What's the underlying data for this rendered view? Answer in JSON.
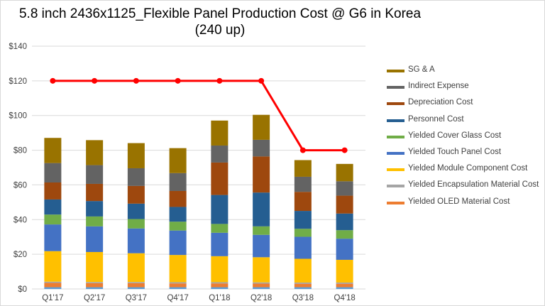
{
  "chart_data": {
    "type": "bar",
    "stacked": true,
    "title": "5.8 inch 2436x1125_Flexible  Panel Production Cost @ G6  in Korea",
    "subtitle": "(240 up)",
    "xlabel": "",
    "ylabel": "",
    "ylim": [
      0,
      140
    ],
    "yticks": [
      "$0",
      "$20",
      "$40",
      "$60",
      "$80",
      "$100",
      "$120",
      "$140"
    ],
    "grid": true,
    "legend_position": "right",
    "categories": [
      "Q1'17",
      "Q2'17",
      "Q3'17",
      "Q4'17",
      "Q1'18",
      "Q2'18",
      "Q3'18",
      "Q4'18"
    ],
    "series": [
      {
        "color": "#5B9BD5",
        "values": [
          1.0,
          1.0,
          1.0,
          1.0,
          1.0,
          1.0,
          1.0,
          1.0
        ]
      },
      {
        "name": "Yielded OLED Material Cost",
        "color": "#ED7D31",
        "values": [
          2.5,
          2.3,
          2.3,
          2.2,
          2.2,
          2.1,
          2.0,
          2.0
        ]
      },
      {
        "name": "Yielded Encapsulation Material Cost",
        "color": "#A5A5A5",
        "values": [
          0.7,
          0.7,
          0.7,
          0.7,
          0.7,
          0.7,
          0.7,
          0.7
        ]
      },
      {
        "name": "Yielded Module Component Cost",
        "color": "#FFC000",
        "values": [
          17.6,
          17.3,
          16.6,
          15.7,
          15.0,
          14.5,
          13.7,
          13.1
        ]
      },
      {
        "name": "Yielded Touch Panel Cost",
        "color": "#4472C4",
        "values": [
          15.4,
          14.8,
          14.3,
          14.1,
          13.5,
          12.9,
          12.7,
          12.2
        ]
      },
      {
        "name": "Yielded Cover Glass Cost",
        "color": "#70AD47",
        "values": [
          5.7,
          5.7,
          5.4,
          5.1,
          5.1,
          4.9,
          4.6,
          4.9
        ]
      },
      {
        "name": "Personnel Cost",
        "color": "#255E91",
        "values": [
          8.7,
          8.9,
          8.9,
          8.5,
          16.7,
          19.5,
          10.3,
          9.6
        ]
      },
      {
        "name": "Depreciation Cost",
        "color": "#9E480E",
        "values": [
          9.8,
          9.9,
          10.2,
          9.2,
          18.7,
          20.8,
          11.0,
          10.3
        ]
      },
      {
        "name": "Indirect Expense",
        "color": "#636363",
        "values": [
          11.2,
          10.8,
          10.2,
          10.3,
          9.8,
          9.6,
          8.7,
          8.3
        ]
      },
      {
        "name": "SG & A",
        "color": "#997300",
        "values": [
          14.5,
          14.4,
          14.5,
          14.4,
          14.4,
          14.4,
          9.6,
          10.0
        ]
      }
    ],
    "line_series": {
      "type": "line",
      "color": "#FF0000",
      "values": [
        120,
        120,
        120,
        120,
        120,
        120,
        80,
        80
      ]
    },
    "legend_order": [
      "SG & A",
      "Indirect Expense",
      "Depreciation Cost",
      "Personnel Cost",
      "Yielded Cover Glass Cost",
      "Yielded Touch Panel Cost",
      "Yielded Module Component Cost",
      "Yielded Encapsulation Material Cost",
      "Yielded OLED Material Cost"
    ]
  }
}
